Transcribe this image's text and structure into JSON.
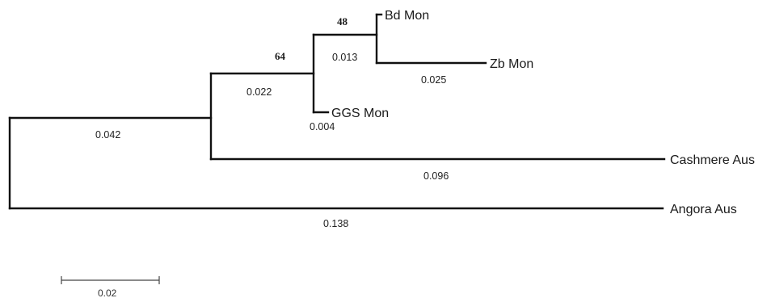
{
  "taxa": {
    "bd_mon": "Bd Mon",
    "zb_mon": "Zb Mon",
    "ggs_mon": "GGS Mon",
    "cashmere_aus": "Cashmere Aus",
    "angora_aus": "Angora Aus"
  },
  "bootstrap": {
    "bd_zb_node": "48",
    "mon_clade_node": "64"
  },
  "branch_lengths": {
    "bd_zb_stem": "0.013",
    "zb_mon": "0.025",
    "mon_clade_stem": "0.022",
    "ggs_mon": "0.004",
    "goat_clade_stem": "0.042",
    "cashmere_aus": "0.096",
    "angora_aus": "0.138"
  },
  "scale_bar": {
    "label": "0.02"
  }
}
